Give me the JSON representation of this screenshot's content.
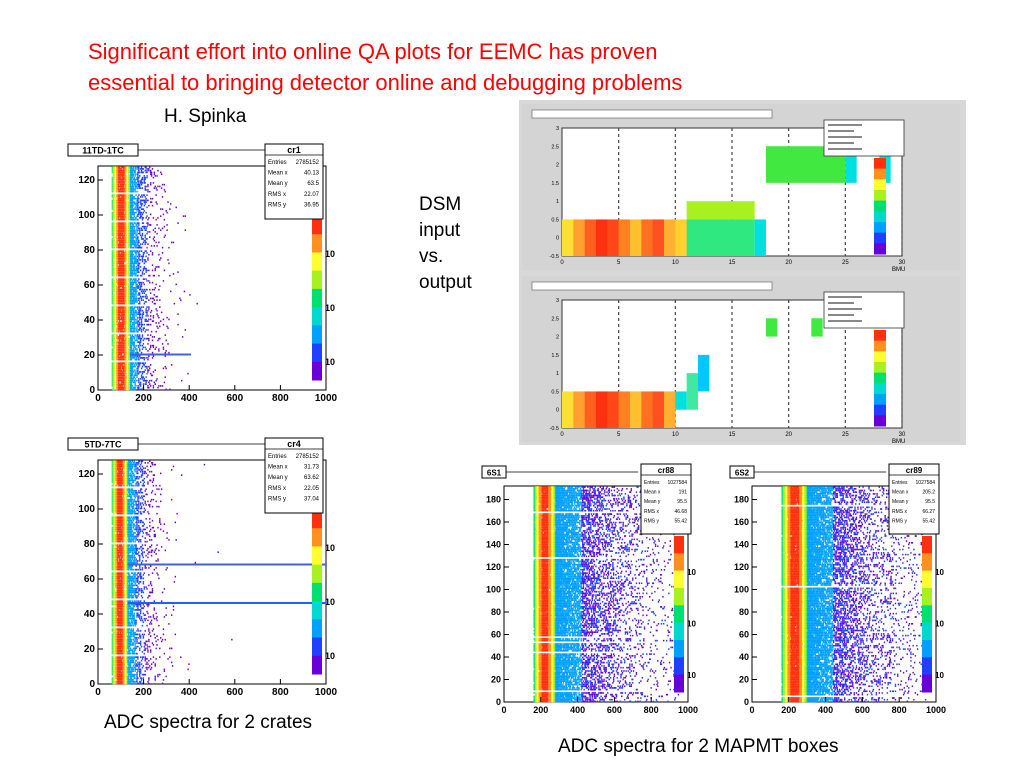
{
  "slide": {
    "title_line1": "Significant effort into online QA plots for EEMC has proven",
    "title_line2": "essential to bringing detector online and debugging problems",
    "author": "H. Spinka",
    "dsm_label": [
      "DSM",
      "input",
      "vs.",
      "output"
    ],
    "caption_left": "ADC spectra for 2 crates",
    "caption_right": "ADC spectra for 2 MAPMT boxes"
  },
  "colors": {
    "title": "#ff0000",
    "palette": [
      "#6a00d8",
      "#2040ff",
      "#00a0ff",
      "#00d8d0",
      "#00e070",
      "#a8f020",
      "#ffff30",
      "#ff9020",
      "#ff3010"
    ]
  },
  "chart_data": [
    {
      "type": "heatmap",
      "panel_label": "11TD-1TC",
      "stats_title": "cr1",
      "stats": [
        [
          "Entries",
          "2785152"
        ],
        [
          "Mean x",
          "40.13"
        ],
        [
          "Mean y",
          "63.5"
        ],
        [
          "RMS x",
          "22.07"
        ],
        [
          "RMS y",
          "36.95"
        ]
      ],
      "xlim": [
        0,
        1000
      ],
      "ylim": [
        0,
        128
      ],
      "x_ticks": [
        "0",
        "200",
        "400",
        "600",
        "800",
        "1000"
      ],
      "y_ticks": [
        "0",
        "20",
        "40",
        "60",
        "80",
        "100",
        "120"
      ],
      "z_ticks": [
        "10",
        "10",
        "10"
      ],
      "hot_rows": [
        20
      ],
      "hot_row_reach": 400
    },
    {
      "type": "heatmap",
      "panel_label": "5TD-7TC",
      "stats_title": "cr4",
      "stats": [
        [
          "Entries",
          "2785152"
        ],
        [
          "Mean x",
          "31.73"
        ],
        [
          "Mean y",
          "63.62"
        ],
        [
          "RMS x",
          "22.05"
        ],
        [
          "RMS y",
          "37.04"
        ]
      ],
      "xlim": [
        0,
        1000
      ],
      "ylim": [
        0,
        128
      ],
      "x_ticks": [
        "0",
        "200",
        "400",
        "600",
        "800",
        "1000"
      ],
      "y_ticks": [
        "0",
        "20",
        "40",
        "60",
        "80",
        "100",
        "120"
      ],
      "z_ticks": [
        "10",
        "10",
        "10"
      ],
      "hot_rows": [
        46,
        68
      ],
      "hot_row_reach": 1000
    },
    {
      "type": "heatmap",
      "panel_label": "6S1",
      "stats_title": "cr88",
      "stats": [
        [
          "Entries",
          "1027584"
        ],
        [
          "Mean x",
          "191"
        ],
        [
          "Mean y",
          "95.5"
        ],
        [
          "RMS x",
          "46.68"
        ],
        [
          "RMS y",
          "55.42"
        ]
      ],
      "xlim": [
        0,
        1000
      ],
      "ylim": [
        0,
        192
      ],
      "x_ticks": [
        "0",
        "200",
        "400",
        "600",
        "800",
        "1000"
      ],
      "y_ticks": [
        "0",
        "20",
        "40",
        "60",
        "80",
        "100",
        "120",
        "140",
        "160",
        "180"
      ],
      "z_ticks": [
        "10",
        "10",
        "10"
      ]
    },
    {
      "type": "heatmap",
      "panel_label": "6S2",
      "stats_title": "cr89",
      "stats": [
        [
          "Entries",
          "1027584"
        ],
        [
          "Mean x",
          "205.2"
        ],
        [
          "Mean y",
          "95.5"
        ],
        [
          "RMS x",
          "66.27"
        ],
        [
          "RMS y",
          "55.42"
        ]
      ],
      "xlim": [
        0,
        1000
      ],
      "ylim": [
        0,
        192
      ],
      "x_ticks": [
        "0",
        "200",
        "400",
        "600",
        "800",
        "1000"
      ],
      "y_ticks": [
        "0",
        "20",
        "40",
        "60",
        "80",
        "100",
        "120",
        "140",
        "160",
        "180"
      ],
      "z_ticks": [
        "10",
        "10",
        "10"
      ]
    },
    {
      "type": "heatmap",
      "panel_label": "DSM input vs. output (upper)",
      "xlim": [
        0,
        30
      ],
      "ylim": [
        -0.5,
        3
      ],
      "x_ticks": [
        "0",
        "5",
        "10",
        "15",
        "20",
        "25",
        "30"
      ],
      "y_ticks": [
        "-0.5",
        "0",
        "0.5",
        "1",
        "1.5",
        "2",
        "2.5",
        "3"
      ],
      "xlabel": "BMU",
      "cells": [
        {
          "x": [
            0,
            11
          ],
          "y": [
            -0.5,
            0.5
          ],
          "c": "gradient"
        },
        {
          "x": [
            11,
            17
          ],
          "y": [
            -0.5,
            0.5
          ],
          "c": "#30e880"
        },
        {
          "x": [
            11,
            17
          ],
          "y": [
            0.5,
            1.0
          ],
          "c": "#a8f020"
        },
        {
          "x": [
            17,
            18
          ],
          "y": [
            -0.5,
            0.5
          ],
          "c": "#00e0e0"
        },
        {
          "x": [
            18,
            25
          ],
          "y": [
            1.5,
            2.5
          ],
          "c": "#40e840"
        },
        {
          "x": [
            25,
            26
          ],
          "y": [
            1.5,
            2.5
          ],
          "c": "#00e0e0"
        },
        {
          "x": [
            28,
            29
          ],
          "y": [
            1.5,
            2.5
          ],
          "c": "#00e0e0"
        }
      ]
    },
    {
      "type": "heatmap",
      "panel_label": "DSM input vs. output (lower)",
      "xlim": [
        0,
        30
      ],
      "ylim": [
        -0.5,
        3
      ],
      "x_ticks": [
        "0",
        "5",
        "10",
        "15",
        "20",
        "25",
        "30"
      ],
      "y_ticks": [
        "-0.5",
        "0",
        "0.5",
        "1",
        "1.5",
        "2",
        "2.5",
        "3"
      ],
      "xlabel": "BMU",
      "cells": [
        {
          "x": [
            0,
            10
          ],
          "y": [
            -0.5,
            0.5
          ],
          "c": "gradient"
        },
        {
          "x": [
            10,
            11
          ],
          "y": [
            0,
            0.5
          ],
          "c": "#00e0e0"
        },
        {
          "x": [
            11,
            12
          ],
          "y": [
            0,
            1.0
          ],
          "c": "#40e8a0"
        },
        {
          "x": [
            12,
            13
          ],
          "y": [
            0.5,
            1.5
          ],
          "c": "#00c8ff"
        },
        {
          "x": [
            18,
            19
          ],
          "y": [
            2.0,
            2.5
          ],
          "c": "#40e840"
        },
        {
          "x": [
            22,
            23
          ],
          "y": [
            2.0,
            2.5
          ],
          "c": "#40e840"
        }
      ]
    }
  ]
}
